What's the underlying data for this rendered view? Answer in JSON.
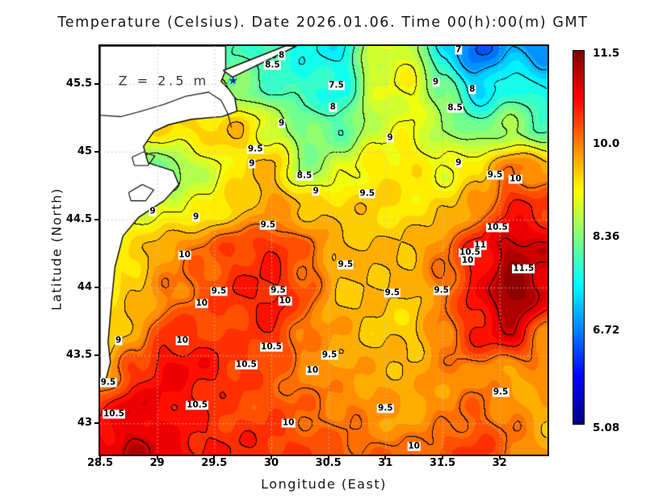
{
  "title": "Temperature (Celsius). Date 2026.01.06. Time 00(h):00(m) GMT",
  "annotation": {
    "text": "Z = 2.5 m",
    "lon": 28.66,
    "lat": 45.52
  },
  "axes": {
    "x": {
      "label": "Longitude (East)",
      "min": 28.5,
      "max": 32.42,
      "ticks": [
        "28.5",
        "29",
        "29.5",
        "30",
        "30.5",
        "31",
        "31.5",
        "32"
      ]
    },
    "y": {
      "label": "Latitude (North)",
      "min": 42.77,
      "max": 45.78,
      "ticks": [
        "45.5",
        "45",
        "44.5",
        "44",
        "43.5",
        "43"
      ]
    },
    "grid_step": 0.5
  },
  "colorbar": {
    "min": 5.08,
    "max": 11.5,
    "labels": [
      "11.5",
      "10.0",
      "8.36",
      "6.72",
      "5.08"
    ]
  },
  "chart_data": {
    "type": "heatmap",
    "quantity": "sea surface temperature",
    "units": "Celsius",
    "contour_interval": 0.5,
    "lons": [
      28.5,
      28.8,
      29.1,
      29.4,
      29.7,
      30.0,
      30.3,
      30.6,
      30.9,
      31.2,
      31.5,
      31.8,
      32.1,
      32.42
    ],
    "lats": [
      45.78,
      45.5,
      45.2,
      44.9,
      44.6,
      44.3,
      44.0,
      43.7,
      43.4,
      43.1,
      42.77
    ],
    "grid": [
      [
        8.5,
        8.5,
        8.5,
        8.3,
        8.0,
        7.9,
        7.6,
        7.4,
        8.8,
        8.8,
        7.2,
        6.5,
        7.0,
        6.7
      ],
      [
        9.0,
        9.0,
        9.0,
        8.8,
        8.4,
        7.9,
        7.7,
        7.6,
        8.8,
        9.1,
        8.3,
        7.2,
        7.7,
        7.4
      ],
      [
        9.2,
        9.2,
        9.3,
        9.3,
        9.4,
        8.8,
        8.3,
        8.1,
        8.8,
        9.0,
        8.5,
        8.1,
        8.5,
        8.0
      ],
      [
        9.0,
        8.4,
        8.2,
        8.8,
        9.3,
        9.6,
        8.4,
        8.8,
        9.2,
        9.2,
        9.0,
        9.4,
        10.0,
        9.7
      ],
      [
        9.0,
        9.0,
        9.0,
        9.1,
        9.4,
        9.7,
        9.5,
        9.4,
        9.4,
        9.3,
        9.4,
        9.8,
        10.5,
        10.3
      ],
      [
        8.9,
        9.3,
        9.7,
        10.0,
        10.3,
        10.5,
        10.1,
        9.6,
        9.5,
        9.5,
        9.9,
        10.6,
        11.2,
        11.0
      ],
      [
        9.1,
        9.4,
        9.9,
        10.2,
        10.5,
        10.6,
        10.1,
        9.4,
        9.5,
        9.5,
        10.0,
        10.7,
        11.5,
        10.9
      ],
      [
        9.3,
        9.7,
        10.4,
        10.3,
        10.2,
        10.4,
        9.9,
        9.7,
        9.5,
        9.4,
        9.9,
        10.5,
        10.9,
        9.8
      ],
      [
        9.5,
        10.3,
        10.7,
        10.6,
        10.4,
        10.2,
        9.9,
        9.7,
        9.6,
        9.5,
        9.8,
        9.9,
        9.7,
        9.9
      ],
      [
        10.5,
        10.9,
        10.7,
        10.5,
        10.3,
        10.2,
        10.0,
        9.9,
        9.8,
        9.7,
        9.9,
        10.1,
        9.8,
        9.5
      ],
      [
        10.9,
        11.1,
        10.8,
        10.5,
        10.4,
        10.4,
        10.3,
        10.2,
        10.1,
        10.0,
        10.2,
        10.3,
        10.0,
        9.7
      ]
    ],
    "contour_labels": [
      {
        "t": "8",
        "lon": 30.09,
        "lat": 45.71
      },
      {
        "t": "8.5",
        "lon": 30.01,
        "lat": 45.64
      },
      {
        "t": "7",
        "lon": 31.64,
        "lat": 45.75
      },
      {
        "t": "7.5",
        "lon": 30.57,
        "lat": 45.49
      },
      {
        "t": "8",
        "lon": 30.54,
        "lat": 45.33
      },
      {
        "t": "9",
        "lon": 31.44,
        "lat": 45.51
      },
      {
        "t": "8",
        "lon": 31.76,
        "lat": 45.46
      },
      {
        "t": "8.5",
        "lon": 31.61,
        "lat": 45.32
      },
      {
        "t": "9",
        "lon": 30.09,
        "lat": 45.21
      },
      {
        "t": "9.5",
        "lon": 29.86,
        "lat": 45.02
      },
      {
        "t": "9",
        "lon": 29.83,
        "lat": 44.91
      },
      {
        "t": "8.5",
        "lon": 30.29,
        "lat": 44.82
      },
      {
        "t": "9",
        "lon": 30.39,
        "lat": 44.71
      },
      {
        "t": "9",
        "lon": 31.04,
        "lat": 45.1
      },
      {
        "t": "9",
        "lon": 31.64,
        "lat": 44.92
      },
      {
        "t": "9.5",
        "lon": 31.96,
        "lat": 44.83
      },
      {
        "t": "10",
        "lon": 32.14,
        "lat": 44.8
      },
      {
        "t": "9",
        "lon": 28.96,
        "lat": 44.56
      },
      {
        "t": "9",
        "lon": 29.34,
        "lat": 44.52
      },
      {
        "t": "9.5",
        "lon": 29.97,
        "lat": 44.46
      },
      {
        "t": "9.5",
        "lon": 30.84,
        "lat": 44.69
      },
      {
        "t": "10",
        "lon": 29.24,
        "lat": 44.24
      },
      {
        "t": "10.5",
        "lon": 31.98,
        "lat": 44.44
      },
      {
        "t": "11",
        "lon": 31.83,
        "lat": 44.31
      },
      {
        "t": "10.5",
        "lon": 31.74,
        "lat": 44.26
      },
      {
        "t": "10",
        "lon": 31.72,
        "lat": 44.2
      },
      {
        "t": "11.5",
        "lon": 32.21,
        "lat": 44.14
      },
      {
        "t": "9.5",
        "lon": 30.65,
        "lat": 44.17
      },
      {
        "t": "9.5",
        "lon": 29.54,
        "lat": 43.97
      },
      {
        "t": "9.5",
        "lon": 30.06,
        "lat": 43.98
      },
      {
        "t": "10",
        "lon": 30.12,
        "lat": 43.9
      },
      {
        "t": "10",
        "lon": 29.39,
        "lat": 43.88
      },
      {
        "t": "9.5",
        "lon": 31.06,
        "lat": 43.96
      },
      {
        "t": "9.5",
        "lon": 31.49,
        "lat": 43.98
      },
      {
        "t": "9",
        "lon": 28.66,
        "lat": 43.61
      },
      {
        "t": "10",
        "lon": 29.22,
        "lat": 43.61
      },
      {
        "t": "10.5",
        "lon": 30.0,
        "lat": 43.56
      },
      {
        "t": "9.5",
        "lon": 30.51,
        "lat": 43.5
      },
      {
        "t": "10.5",
        "lon": 29.78,
        "lat": 43.43
      },
      {
        "t": "10",
        "lon": 30.36,
        "lat": 43.39
      },
      {
        "t": "9.5",
        "lon": 28.57,
        "lat": 43.3
      },
      {
        "t": "10.5",
        "lon": 29.35,
        "lat": 43.13
      },
      {
        "t": "10.5",
        "lon": 28.62,
        "lat": 43.07
      },
      {
        "t": "9.5",
        "lon": 31.0,
        "lat": 43.11
      },
      {
        "t": "9.5",
        "lon": 32.01,
        "lat": 43.23
      },
      {
        "t": "10",
        "lon": 30.15,
        "lat": 43.0
      },
      {
        "t": "10",
        "lon": 31.25,
        "lat": 42.83
      }
    ],
    "marker": {
      "symbol": "star",
      "lon": 29.665,
      "lat": 45.52,
      "color": "#0022b4"
    },
    "land": {
      "fill": "#ffffff",
      "stroke": "#000000",
      "polygons": [
        [
          [
            28.5,
            45.78
          ],
          [
            29.6,
            45.78
          ],
          [
            29.6,
            45.6
          ],
          [
            29.56,
            45.52
          ],
          [
            29.63,
            45.46
          ],
          [
            29.68,
            45.4
          ],
          [
            29.7,
            45.3
          ],
          [
            29.57,
            45.26
          ],
          [
            29.3,
            45.24
          ],
          [
            29.1,
            45.2
          ],
          [
            28.97,
            45.15
          ],
          [
            28.88,
            45.04
          ],
          [
            28.92,
            44.92
          ],
          [
            29.14,
            44.86
          ],
          [
            29.19,
            44.76
          ],
          [
            29.06,
            44.64
          ],
          [
            28.84,
            44.52
          ],
          [
            28.7,
            44.38
          ],
          [
            28.63,
            44.15
          ],
          [
            28.6,
            43.9
          ],
          [
            28.57,
            43.6
          ],
          [
            28.59,
            43.45
          ],
          [
            28.55,
            43.32
          ],
          [
            28.5,
            43.3
          ]
        ],
        [
          [
            29.58,
            45.6
          ],
          [
            30.12,
            45.78
          ],
          [
            30.22,
            45.78
          ],
          [
            29.66,
            45.55
          ]
        ]
      ],
      "lines": [
        [
          [
            28.5,
            45.27
          ],
          [
            28.68,
            45.26
          ],
          [
            28.86,
            45.3
          ],
          [
            29.06,
            45.35
          ],
          [
            29.25,
            45.41
          ],
          [
            29.45,
            45.44
          ],
          [
            29.56,
            45.38
          ],
          [
            29.62,
            45.28
          ],
          [
            29.65,
            45.18
          ]
        ],
        [
          [
            28.78,
            44.96
          ],
          [
            28.88,
            45.0
          ],
          [
            28.98,
            44.97
          ],
          [
            28.92,
            44.9
          ],
          [
            28.8,
            44.9
          ],
          [
            28.78,
            44.96
          ]
        ],
        [
          [
            28.75,
            44.7
          ],
          [
            28.87,
            44.76
          ],
          [
            28.97,
            44.72
          ],
          [
            28.9,
            44.64
          ],
          [
            28.77,
            44.64
          ],
          [
            28.75,
            44.7
          ]
        ]
      ]
    },
    "gridline_color": "#c4c4c4"
  }
}
